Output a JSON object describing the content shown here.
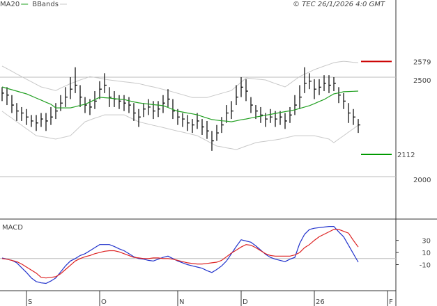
{
  "chart_data": [
    {
      "type": "ohlc",
      "source": "© TEC 26/1/2026 4:0 GMT",
      "bar_color": "#000000",
      "high": [
        2450,
        2450,
        2410,
        2370,
        2350,
        2340,
        2310,
        2310,
        2320,
        2320,
        2350,
        2370,
        2410,
        2450,
        2500,
        2550,
        2460,
        2400,
        2390,
        2430,
        2480,
        2520,
        2450,
        2430,
        2410,
        2410,
        2400,
        2370,
        2340,
        2370,
        2390,
        2380,
        2380,
        2410,
        2440,
        2390,
        2340,
        2320,
        2310,
        2290,
        2320,
        2290,
        2280,
        2230,
        2260,
        2300,
        2360,
        2380,
        2460,
        2500,
        2490,
        2400,
        2360,
        2350,
        2320,
        2340,
        2330,
        2330,
        2320,
        2350,
        2410,
        2460,
        2550,
        2520,
        2490,
        2490,
        2510,
        2510,
        2500,
        2450,
        2420,
        2370,
        2340,
        2290
      ],
      "low": [
        2380,
        2360,
        2320,
        2280,
        2280,
        2260,
        2250,
        2230,
        2250,
        2230,
        2260,
        2290,
        2330,
        2350,
        2390,
        2420,
        2350,
        2320,
        2310,
        2340,
        2390,
        2420,
        2350,
        2350,
        2340,
        2330,
        2320,
        2280,
        2250,
        2300,
        2310,
        2290,
        2300,
        2320,
        2350,
        2290,
        2260,
        2250,
        2230,
        2220,
        2240,
        2210,
        2190,
        2130,
        2180,
        2220,
        2270,
        2290,
        2360,
        2400,
        2380,
        2320,
        2290,
        2270,
        2250,
        2270,
        2250,
        2260,
        2240,
        2270,
        2310,
        2340,
        2420,
        2440,
        2390,
        2410,
        2430,
        2420,
        2430,
        2370,
        2340,
        2270,
        2260,
        2220
      ],
      "close": [
        2420,
        2410,
        2360,
        2330,
        2320,
        2300,
        2280,
        2270,
        2290,
        2280,
        2300,
        2330,
        2370,
        2400,
        2440,
        2460,
        2400,
        2360,
        2350,
        2380,
        2440,
        2460,
        2400,
        2390,
        2380,
        2370,
        2360,
        2320,
        2300,
        2340,
        2350,
        2330,
        2340,
        2370,
        2390,
        2330,
        2300,
        2290,
        2270,
        2260,
        2280,
        2250,
        2230,
        2180,
        2220,
        2260,
        2320,
        2330,
        2400,
        2450,
        2430,
        2360,
        2330,
        2310,
        2290,
        2300,
        2290,
        2300,
        2280,
        2310,
        2360,
        2400,
        2470,
        2480,
        2440,
        2450,
        2470,
        2460,
        2470,
        2410,
        2380,
        2320,
        2300,
        2260
      ],
      "series": [
        {
          "name": "MA20",
          "color": "#22a022",
          "values": [
            2451,
            2444,
            2437,
            2430,
            2423,
            2416,
            2406,
            2395,
            2385,
            2374,
            2364,
            2346,
            2346,
            2346,
            2346,
            2352,
            2358,
            2364,
            2375,
            2387,
            2399,
            2397,
            2395,
            2392,
            2390,
            2388,
            2382,
            2376,
            2371,
            2368,
            2365,
            2362,
            2360,
            2357,
            2348,
            2338,
            2329,
            2325,
            2320,
            2316,
            2311,
            2303,
            2295,
            2287,
            2284,
            2281,
            2279,
            2276,
            2281,
            2286,
            2290,
            2295,
            2300,
            2304,
            2309,
            2313,
            2318,
            2322,
            2327,
            2331,
            2336,
            2343,
            2350,
            2357,
            2367,
            2378,
            2388,
            2402,
            2416,
            2421,
            2427,
            2428,
            2429,
            2430
          ]
        },
        {
          "name": "BBands",
          "color": "#c8c8c8",
          "upper": [
            2556,
            2543,
            2530,
            2516,
            2503,
            2490,
            2477,
            2464,
            2451,
            2445,
            2439,
            2433,
            2445,
            2456,
            2468,
            2477,
            2486,
            2494,
            2503,
            2499,
            2495,
            2490,
            2486,
            2483,
            2480,
            2477,
            2474,
            2471,
            2468,
            2462,
            2456,
            2451,
            2445,
            2439,
            2433,
            2426,
            2419,
            2412,
            2405,
            2398,
            2398,
            2398,
            2398,
            2405,
            2412,
            2419,
            2426,
            2433,
            2454,
            2475,
            2496,
            2494,
            2491,
            2489,
            2486,
            2477,
            2468,
            2460,
            2451,
            2468,
            2486,
            2503,
            2515,
            2526,
            2538,
            2547,
            2556,
            2564,
            2573,
            2577,
            2580,
            2578,
            2575,
            2573
          ],
          "lower": [
            2329,
            2311,
            2294,
            2276,
            2259,
            2241,
            2224,
            2206,
            2202,
            2198,
            2193,
            2189,
            2195,
            2200,
            2206,
            2229,
            2253,
            2276,
            2285,
            2294,
            2302,
            2311,
            2311,
            2311,
            2311,
            2311,
            2299,
            2288,
            2276,
            2270,
            2264,
            2258,
            2253,
            2247,
            2241,
            2235,
            2229,
            2224,
            2218,
            2212,
            2206,
            2193,
            2180,
            2167,
            2154,
            2150,
            2145,
            2141,
            2136,
            2145,
            2154,
            2162,
            2171,
            2175,
            2178,
            2182,
            2185,
            2189,
            2195,
            2200,
            2206,
            2206,
            2206,
            2206,
            2206,
            2200,
            2195,
            2189,
            2171,
            2189,
            2206,
            2224,
            2241,
            2259
          ]
        }
      ],
      "levels": [
        {
          "value": 2579,
          "color": "#cc0000"
        },
        {
          "value": 2112,
          "color": "#009900"
        }
      ],
      "ylim": [
        1787,
        2888
      ],
      "yticks": [
        2000,
        2500
      ],
      "grid": true
    },
    {
      "type": "line",
      "title": "MACD",
      "categories": [
        null,
        null,
        null,
        null,
        null,
        "S",
        null,
        null,
        null,
        null,
        null,
        null,
        null,
        null,
        null,
        null,
        null,
        null,
        null,
        null,
        "O",
        null,
        null,
        null,
        null,
        null,
        null,
        null,
        null,
        null,
        null,
        null,
        null,
        null,
        null,
        null,
        "N",
        null,
        null,
        null,
        null,
        null,
        null,
        null,
        null,
        null,
        null,
        null,
        null,
        "D",
        null,
        null,
        null,
        null,
        null,
        null,
        null,
        null,
        null,
        null,
        null,
        null,
        null,
        null,
        "26",
        null,
        null,
        null,
        null,
        null,
        null,
        null,
        null,
        null,
        null,
        null,
        null,
        null,
        null,
        "F"
      ],
      "series": [
        {
          "color": "#2233cc",
          "values": [
            1,
            -1,
            -3,
            -7,
            -15,
            -23,
            -32,
            -38,
            -40,
            -41,
            -37,
            -32,
            -22,
            -12,
            -4,
            0,
            5,
            8,
            13,
            18,
            23,
            23,
            23,
            20,
            16,
            13,
            8,
            3,
            0,
            -1,
            -3,
            -4,
            -1,
            2,
            4,
            0,
            -4,
            -7,
            -10,
            -12,
            -14,
            -16,
            -20,
            -23,
            -18,
            -12,
            -4,
            8,
            20,
            31,
            29,
            27,
            21,
            14,
            7,
            2,
            -1,
            -3,
            -5,
            -1,
            2,
            25,
            40,
            48,
            50,
            51,
            52,
            53,
            53,
            44,
            36,
            22,
            8,
            -6,
            null,
            null,
            null,
            null,
            null,
            null
          ]
        },
        {
          "color": "#dd2222",
          "values": [
            0,
            -1,
            -3,
            -5,
            -9,
            -14,
            -19,
            -24,
            -31,
            -32,
            -31,
            -30,
            -25,
            -18,
            -11,
            -4,
            0,
            3,
            5,
            8,
            10,
            12,
            13,
            13,
            11,
            8,
            5,
            2,
            1,
            0,
            0,
            1,
            1,
            0,
            0,
            -1,
            -3,
            -5,
            -7,
            -8,
            -9,
            -9,
            -8,
            -7,
            -6,
            -3,
            3,
            9,
            14,
            19,
            23,
            22,
            18,
            13,
            8,
            5,
            4,
            4,
            4,
            4,
            6,
            10,
            18,
            23,
            30,
            36,
            40,
            44,
            48,
            48,
            45,
            42,
            30,
            19,
            null,
            null,
            null,
            null,
            null,
            null
          ]
        }
      ],
      "ylim": [
        -53,
        64
      ],
      "yticks": [
        -10,
        10,
        30
      ]
    }
  ]
}
